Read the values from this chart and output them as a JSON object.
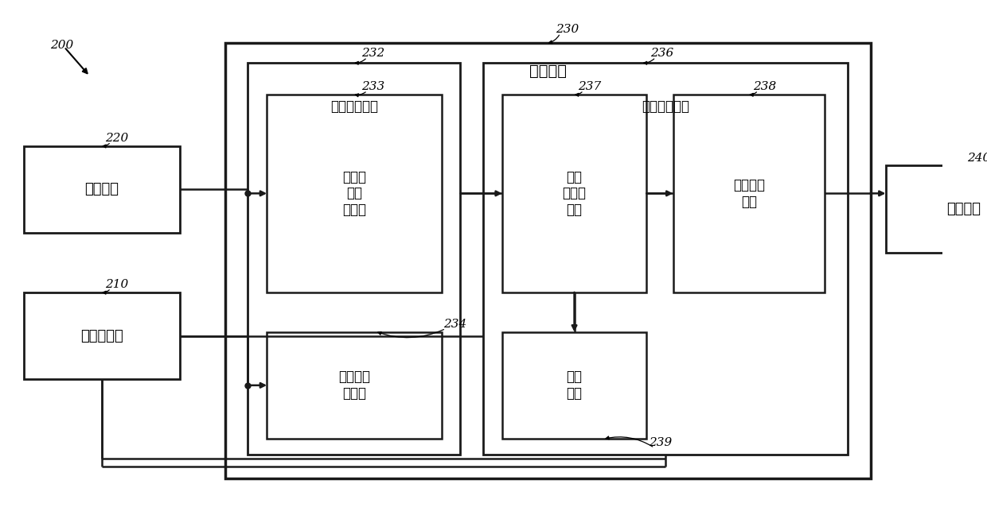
{
  "bg_color": "#ffffff",
  "fig_width": 12.4,
  "fig_height": 6.48,
  "dpi": 100,
  "label_200": "200",
  "label_220": "220",
  "label_210": "210",
  "label_230": "230",
  "label_232": "232",
  "label_233": "233",
  "label_234": "234",
  "label_236": "236",
  "label_237": "237",
  "label_238": "238",
  "label_239": "239",
  "label_240": "240",
  "text_sensing": "感测电路",
  "text_estim": "电刺激电路",
  "text_control": "控制电路",
  "text_capture": "捕获验证电路",
  "text_stim_ctrl": "刺激控制电路",
  "text_his": "希氏束\n响应\n检测器",
  "text_myocard": "心肌响应\n检测器",
  "text_param": "参数\n调整器\n电路",
  "text_threshold": "阈值测试\n电路",
  "text_timer": "定时\n电路",
  "text_user": "用户接口",
  "box_color": "#ffffff",
  "box_edge": "#1a1a1a",
  "line_color": "#1a1a1a",
  "font_size_main": 14,
  "font_size_label": 13,
  "font_size_sub": 12,
  "font_size_ref": 11,
  "lw_outer": 2.5,
  "lw_inner": 2.0,
  "lw_sub": 1.8,
  "lw_conn": 1.8
}
